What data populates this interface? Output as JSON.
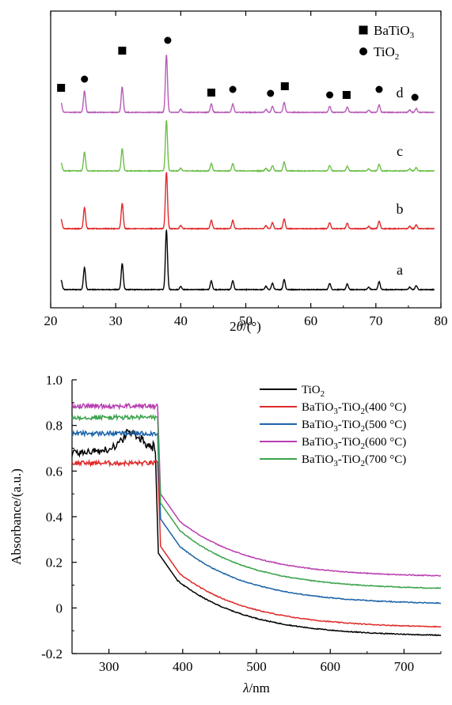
{
  "chart_data": [
    {
      "type": "line",
      "panel": "XRD",
      "xlabel_prefix": "2",
      "xlabel_theta": "θ",
      "xlabel_suffix": "/(°)",
      "xlim": [
        20,
        80
      ],
      "xticks": [
        20,
        30,
        40,
        50,
        60,
        70,
        80
      ],
      "legend": [
        {
          "marker": "square",
          "base": "BaTiO",
          "sub": "3"
        },
        {
          "marker": "circle",
          "base": "TiO",
          "sub": "2"
        }
      ],
      "peaks": [
        {
          "x": 21.6,
          "a": 12,
          "phase": "BaTiO3"
        },
        {
          "x": 25.2,
          "a": 28,
          "phase": "TiO2"
        },
        {
          "x": 31.0,
          "a": 33,
          "phase": "BaTiO3"
        },
        {
          "x": 37.8,
          "a": 75,
          "phase": "TiO2"
        },
        {
          "x": 40.0,
          "a": 4,
          "phase": ""
        },
        {
          "x": 44.7,
          "a": 11,
          "phase": "BaTiO3"
        },
        {
          "x": 48.0,
          "a": 11,
          "phase": "TiO2"
        },
        {
          "x": 53.1,
          "a": 4,
          "phase": ""
        },
        {
          "x": 54.1,
          "a": 8,
          "phase": "TiO2"
        },
        {
          "x": 55.9,
          "a": 13,
          "phase": "BaTiO3"
        },
        {
          "x": 62.9,
          "a": 8,
          "phase": "TiO2"
        },
        {
          "x": 65.6,
          "a": 7,
          "phase": "BaTiO3"
        },
        {
          "x": 68.9,
          "a": 3,
          "phase": ""
        },
        {
          "x": 70.5,
          "a": 10,
          "phase": "TiO2"
        },
        {
          "x": 75.2,
          "a": 3,
          "phase": ""
        },
        {
          "x": 76.2,
          "a": 5,
          "phase": "TiO2"
        }
      ],
      "series": [
        {
          "label": "a",
          "color": "#000000"
        },
        {
          "label": "b",
          "color": "#e02a2a"
        },
        {
          "label": "c",
          "color": "#6cbf4a"
        },
        {
          "label": "d",
          "color": "#b85cb8"
        }
      ],
      "annotations": [
        {
          "x": 21.6,
          "marker": "square"
        },
        {
          "x": 25.2,
          "marker": "circle"
        },
        {
          "x": 31.0,
          "marker": "square"
        },
        {
          "x": 38.0,
          "marker": "circle"
        },
        {
          "x": 44.7,
          "marker": "square"
        },
        {
          "x": 48.0,
          "marker": "circle"
        },
        {
          "x": 53.8,
          "marker": "circle"
        },
        {
          "x": 56.0,
          "marker": "square"
        },
        {
          "x": 62.9,
          "marker": "circle"
        },
        {
          "x": 65.5,
          "marker": "square"
        },
        {
          "x": 70.5,
          "marker": "circle"
        },
        {
          "x": 76.0,
          "marker": "circle"
        }
      ]
    },
    {
      "type": "line",
      "panel": "UV-Vis",
      "ylabel": "Absorbance/(a.u.)",
      "xlabel_lambda": "λ",
      "xlabel_suffix": "/nm",
      "xlim": [
        250,
        750
      ],
      "ylim": [
        -0.2,
        1.0
      ],
      "xticks": [
        300,
        400,
        500,
        600,
        700
      ],
      "yticks": [
        -0.2,
        0,
        0.2,
        0.4,
        0.6,
        0.8,
        1.0
      ],
      "ytick_labels": [
        "-0.2",
        "0",
        "0.2",
        "0.4",
        "0.6",
        "0.8",
        "1.0"
      ],
      "series": [
        {
          "color": "#000000",
          "legend": [
            {
              "t": "TiO"
            },
            {
              "t": "2",
              "sub": true
            }
          ],
          "plateau": 0.68,
          "edge": 363,
          "mid": 0.12,
          "tail": -0.125,
          "bump": 0.07
        },
        {
          "color": "#e02a2a",
          "legend": [
            {
              "t": "BaTiO"
            },
            {
              "t": "3",
              "sub": true
            },
            {
              "t": "-TiO"
            },
            {
              "t": "2",
              "sub": true
            },
            {
              "t": "(400 °C)"
            }
          ],
          "plateau": 0.635,
          "edge": 366,
          "mid": 0.15,
          "tail": -0.088,
          "bump": 0.0
        },
        {
          "color": "#1a63a8",
          "legend": [
            {
              "t": "BaTiO"
            },
            {
              "t": "3",
              "sub": true
            },
            {
              "t": "-TiO"
            },
            {
              "t": "2",
              "sub": true
            },
            {
              "t": "(500 °C)"
            }
          ],
          "plateau": 0.765,
          "edge": 366,
          "mid": 0.27,
          "tail": 0.015,
          "bump": 0.0
        },
        {
          "color": "#b83fb0",
          "legend": [
            {
              "t": "BaTiO"
            },
            {
              "t": "3",
              "sub": true
            },
            {
              "t": "-TiO"
            },
            {
              "t": "2",
              "sub": true
            },
            {
              "t": "(600 °C)"
            }
          ],
          "plateau": 0.885,
          "edge": 366,
          "mid": 0.38,
          "tail": 0.135,
          "bump": 0.0
        },
        {
          "color": "#3aa34a",
          "legend": [
            {
              "t": "BaTiO"
            },
            {
              "t": "3",
              "sub": true
            },
            {
              "t": "-TiO"
            },
            {
              "t": "2",
              "sub": true
            },
            {
              "t": "(700 °C)"
            }
          ],
          "plateau": 0.835,
          "edge": 366,
          "mid": 0.34,
          "tail": 0.08,
          "bump": 0.0
        }
      ]
    }
  ]
}
